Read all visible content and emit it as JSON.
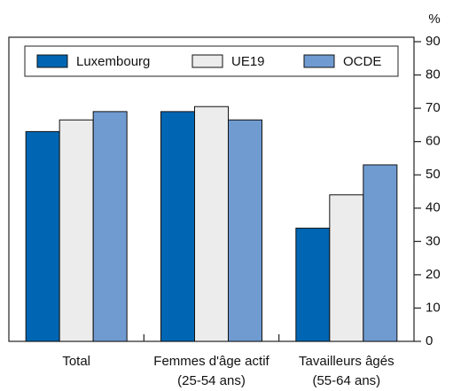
{
  "chart_data": {
    "type": "bar",
    "unit": "%",
    "categories": [
      "Total",
      "Femmes d'âge actif\n(25-54 ans)",
      "Tavailleurs âgés\n(55-64 ans)"
    ],
    "series": [
      {
        "name": "Luxembourg",
        "color": "#0066b3",
        "values": [
          63,
          69,
          34
        ]
      },
      {
        "name": "UE19",
        "color": "#ececec",
        "values": [
          66.5,
          70.5,
          44
        ]
      },
      {
        "name": "OCDE",
        "color": "#6f9bd1",
        "values": [
          69,
          66.5,
          53
        ]
      }
    ],
    "ylim": [
      0,
      90
    ],
    "yticks": [
      0,
      10,
      20,
      30,
      40,
      50,
      60,
      70,
      80,
      90
    ],
    "y_axis_side": "right",
    "grid": false,
    "legend": "top"
  }
}
